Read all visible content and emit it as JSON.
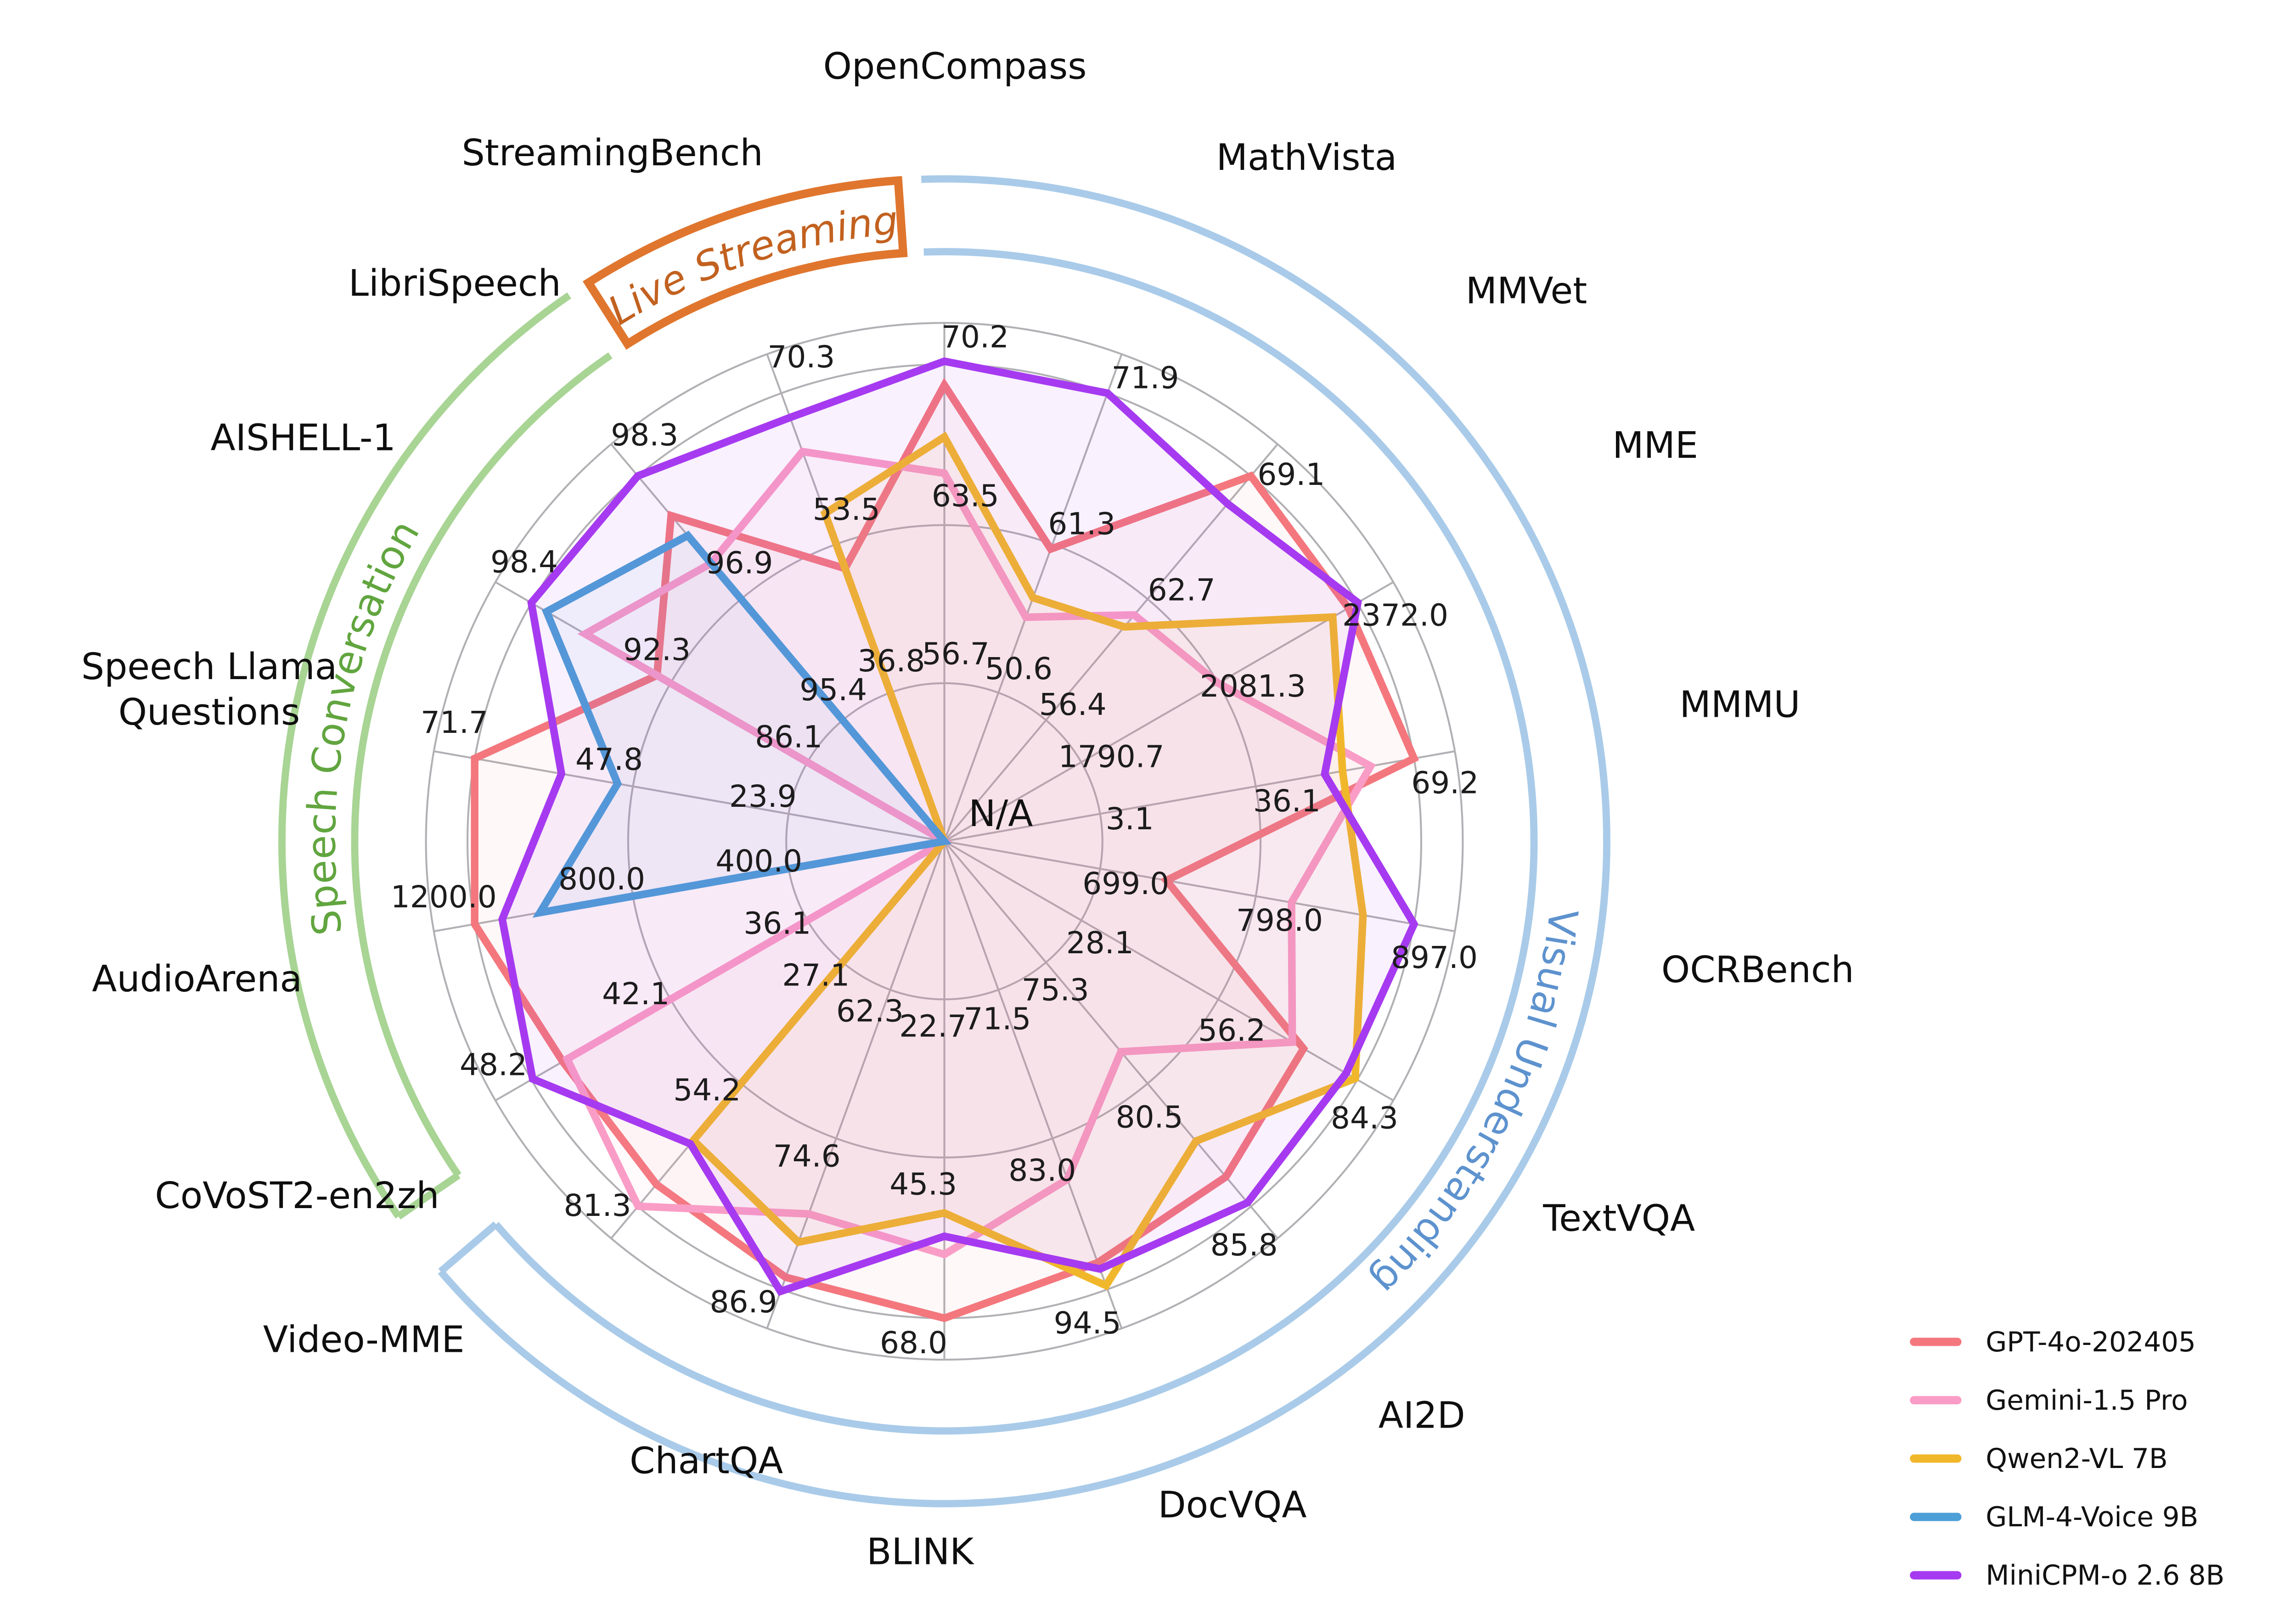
{
  "chart_data": {
    "type": "radar",
    "center_label": "N/A",
    "ring_fracs": [
      0.305,
      0.61,
      0.92,
      1.0
    ],
    "axes": [
      {
        "label": "OpenCompass",
        "group": "Live Streaming",
        "ticks": [
          "56.7",
          "63.5",
          "70.2"
        ]
      },
      {
        "label": "MathVista",
        "group": "Visual Understanding",
        "ticks": [
          "50.6",
          "61.3",
          "71.9"
        ]
      },
      {
        "label": "MMVet",
        "group": "Visual Understanding",
        "ticks": [
          "56.4",
          "62.7",
          "69.1"
        ]
      },
      {
        "label": "MME",
        "group": "Visual Understanding",
        "ticks": [
          "1790.7",
          "2081.3",
          "2372.0"
        ]
      },
      {
        "label": "MMMU",
        "group": "Visual Understanding",
        "ticks": [
          "3.1",
          "36.1",
          "69.2"
        ]
      },
      {
        "label": "OCRBench",
        "group": "Visual Understanding",
        "ticks": [
          "699.0",
          "798.0",
          "897.0"
        ]
      },
      {
        "label": "TextVQA",
        "group": "Visual Understanding",
        "ticks": [
          "28.1",
          "56.2",
          "84.3"
        ]
      },
      {
        "label": "AI2D",
        "group": "Visual Understanding",
        "ticks": [
          "75.3",
          "80.5",
          "85.8"
        ]
      },
      {
        "label": "DocVQA",
        "group": "Visual Understanding",
        "ticks": [
          "71.5",
          "83.0",
          "94.5"
        ]
      },
      {
        "label": "BLINK",
        "group": "Visual Understanding",
        "ticks": [
          "22.7",
          "45.3",
          "68.0"
        ]
      },
      {
        "label": "ChartQA",
        "group": "Visual Understanding",
        "ticks": [
          "62.3",
          "74.6",
          "86.9"
        ]
      },
      {
        "label": "Video-MME",
        "group": "Visual Understanding",
        "ticks": [
          "27.1",
          "54.2",
          "81.3"
        ]
      },
      {
        "label": "CoVoST2-en2zh",
        "group": "Speech Conversation",
        "ticks": [
          "36.1",
          "42.1",
          "48.2"
        ]
      },
      {
        "label": "AudioArena",
        "group": "Speech Conversation",
        "ticks": [
          "400.0",
          "800.0",
          "1200.0"
        ]
      },
      {
        "label": "Speech Llama Questions",
        "group": "Speech Conversation",
        "ticks": [
          "23.9",
          "47.8",
          "71.7"
        ],
        "lines": [
          "Speech Llama",
          "Questions"
        ]
      },
      {
        "label": "AISHELL-1",
        "group": "Speech Conversation",
        "ticks": [
          "86.1",
          "92.3",
          "98.4"
        ]
      },
      {
        "label": "LibriSpeech",
        "group": "Speech Conversation",
        "ticks": [
          "95.4",
          "96.9",
          "98.3"
        ]
      },
      {
        "label": "StreamingBench",
        "group": "Live Streaming",
        "ticks": [
          "36.8",
          "53.5",
          "70.3"
        ]
      }
    ],
    "series": [
      {
        "name": "GPT-4o-202405",
        "color": "#F4777E",
        "r": [
          0.88,
          0.6,
          0.92,
          0.9,
          0.92,
          0.435,
          0.8,
          0.845,
          0.865,
          0.92,
          0.895,
          0.864,
          0.85,
          0.92,
          0.92,
          0.64,
          0.82,
          0.56
        ],
        "values": [
          69.8,
          61.3,
          69.1,
          2353,
          69.2,
          741,
          73.3,
          84.5,
          92.5,
          68.0,
          85.9,
          76.4,
          46.8,
          1200.0,
          71.7,
          92.8,
          97.8,
          50.7
        ]
      },
      {
        "name": "Gemini-1.5 Pro",
        "color": "#FA9DC6",
        "r": [
          0.71,
          0.46,
          0.57,
          0.61,
          0.835,
          0.68,
          0.775,
          0.53,
          0.694,
          0.797,
          0.765,
          0.919,
          0.84,
          0,
          0,
          0.8,
          0.7,
          0.8
        ],
        "values": [
          65.6,
          56.0,
          61.9,
          2079,
          60.1,
          820,
          71.1,
          79.1,
          86.1,
          59.0,
          80.7,
          81.3,
          46.6,
          "N/A",
          "N/A",
          96.0,
          97.3,
          63.8
        ]
      },
      {
        "name": "Qwen2-VL 7B",
        "color": "#F1B72B",
        "r": [
          0.78,
          0.5,
          0.54,
          0.865,
          0.78,
          0.82,
          0.915,
          0.755,
          0.912,
          0.717,
          0.823,
          0.753,
          0,
          0,
          0,
          0,
          0,
          0.673
        ],
        "values": [
          67.1,
          57.4,
          61.3,
          2320,
          54.1,
          865,
          84.3,
          83.0,
          94.5,
          53.0,
          83.0,
          66.6,
          "N/A",
          "N/A",
          "N/A",
          "N/A",
          "N/A",
          56.8
        ]
      },
      {
        "name": "GLM-4-Voice 9B",
        "color": "#4D9FD7",
        "r": [
          0,
          0,
          0,
          0,
          0,
          0,
          0,
          0,
          0,
          0,
          0,
          0,
          0,
          0.792,
          0.64,
          0.886,
          0.77,
          0
        ],
        "values": [
          "N/A",
          "N/A",
          "N/A",
          "N/A",
          "N/A",
          "N/A",
          "N/A",
          "N/A",
          "N/A",
          "N/A",
          "N/A",
          "N/A",
          "N/A",
          1033,
          49.9,
          97.7,
          97.6,
          "N/A"
        ]
      },
      {
        "name": "MiniCPM-o 2.6 8B",
        "color": "#A63AF0",
        "r": [
          0.926,
          0.92,
          0.85,
          0.921,
          0.745,
          0.92,
          0.895,
          0.91,
          0.878,
          0.762,
          0.924,
          0.762,
          0.917,
          0.866,
          0.75,
          0.92,
          0.92,
          0.87
        ],
        "values": [
          70.2,
          71.9,
          67.7,
          2372.0,
          50.4,
          897.0,
          81.8,
          85.8,
          92.9,
          56.4,
          86.9,
          67.4,
          48.2,
          1131,
          58.5,
          98.4,
          98.3,
          67.6
        ]
      }
    ],
    "groups": [
      {
        "label": "Live Streaming",
        "arc_color": "#E0762E",
        "text_color": "#C2611F",
        "style": "box",
        "a1": 122.5,
        "a2": 94,
        "t1": 123,
        "t2": 93.5,
        "italic": true
      },
      {
        "label": "Speech Conversation",
        "arc_color": "#A8D494",
        "text_color": "#61A53F",
        "style": "band",
        "a1": 214.5,
        "a2": 124.5,
        "t1": 214,
        "t2": 124,
        "caps": [
          214.5
        ]
      },
      {
        "label": "Visual Understanding",
        "arc_color": "#A9CBE9",
        "text_color": "#5D92CE",
        "style": "band",
        "a1": 92,
        "a2": -139.5,
        "t1": 40,
        "t2": -92,
        "caps": [
          -139.5
        ]
      }
    ],
    "legend": [
      {
        "label": "GPT-4o-202405",
        "color": "#F4777E"
      },
      {
        "label": "Gemini-1.5 Pro",
        "color": "#FA9DC6"
      },
      {
        "label": "Qwen2-VL 7B",
        "color": "#F1B72B"
      },
      {
        "label": "GLM-4-Voice 9B",
        "color": "#4D9FD7"
      },
      {
        "label": "MiniCPM-o 2.6 8B",
        "color": "#A63AF0"
      }
    ],
    "grid_color": "#b2b0b4",
    "layout_hint": {
      "axis_start_deg": 90,
      "axis_step_deg": -20,
      "legend_position": "bottom-right",
      "grid": true
    }
  }
}
